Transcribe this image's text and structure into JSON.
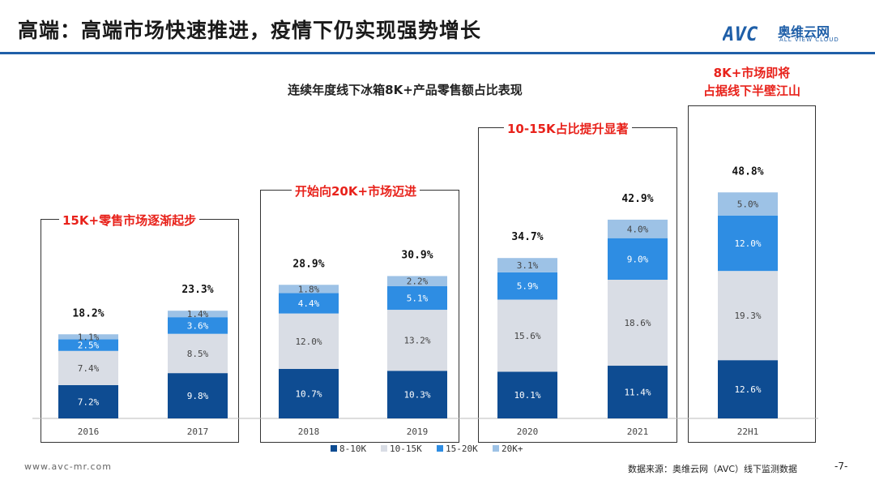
{
  "header": {
    "title": "高端：高端市场快速推进，疫情下仍实现强势增长",
    "logo_text": "奥维云网",
    "logo_sub": "ALL VIEW CLOUD",
    "logo_mark": "AVC"
  },
  "colors": {
    "8-10K": "#0e4c92",
    "10-15K": "#d9dde5",
    "15-20K": "#2e8de3",
    "20K+": "#9dc2e6",
    "accent": "#1f5fa8",
    "callout": "#e8221b"
  },
  "callouts": {
    "c1": "15K+零售市场逐渐起步",
    "c2": "开始向20K+市场迈进",
    "c3": "10-15K占比提升显著",
    "c4_line1": "8K+市场即将",
    "c4_line2": "占据线下半壁江山"
  },
  "chart_data": {
    "type": "bar",
    "stacked": true,
    "title": "连续年度线下冰箱8K+产品零售额占比表现",
    "categories": [
      "2016",
      "2017",
      "2018",
      "2019",
      "2020",
      "2021",
      "22H1"
    ],
    "series": [
      {
        "name": "8-10K",
        "values": [
          7.2,
          9.8,
          10.7,
          10.3,
          10.1,
          11.4,
          12.6
        ],
        "labels": [
          "7.2%",
          "9.8%",
          "10.7%",
          "10.3%",
          "10.1%",
          "11.4%",
          "12.6%"
        ]
      },
      {
        "name": "10-15K",
        "values": [
          7.4,
          8.5,
          12.0,
          13.2,
          15.6,
          18.6,
          19.3
        ],
        "labels": [
          "7.4%",
          "8.5%",
          "12.0%",
          "13.2%",
          "15.6%",
          "18.6%",
          "19.3%"
        ]
      },
      {
        "name": "15-20K",
        "values": [
          2.5,
          3.6,
          4.4,
          5.1,
          5.9,
          9.0,
          12.0
        ],
        "labels": [
          "2.5%",
          "3.6%",
          "4.4%",
          "5.1%",
          "5.9%",
          "9.0%",
          "12.0%"
        ]
      },
      {
        "name": "20K+",
        "values": [
          1.1,
          1.4,
          1.8,
          2.2,
          3.1,
          4.0,
          5.0
        ],
        "labels": [
          "1.1%",
          "1.4%",
          "1.8%",
          "2.2%",
          "3.1%",
          "4.0%",
          "5.0%"
        ]
      }
    ],
    "totals": [
      "18.2%",
      "23.3%",
      "28.9%",
      "30.9%",
      "34.7%",
      "42.9%",
      "48.8%"
    ],
    "legend": [
      "8-10K",
      "10-15K",
      "15-20K",
      "20K+"
    ],
    "legend_position": "bottom-center",
    "grid": false
  },
  "footer": {
    "website": "www.avc-mr.com",
    "source": "数据来源：奥维云网（AVC）线下监测数据",
    "page": "-7-"
  }
}
